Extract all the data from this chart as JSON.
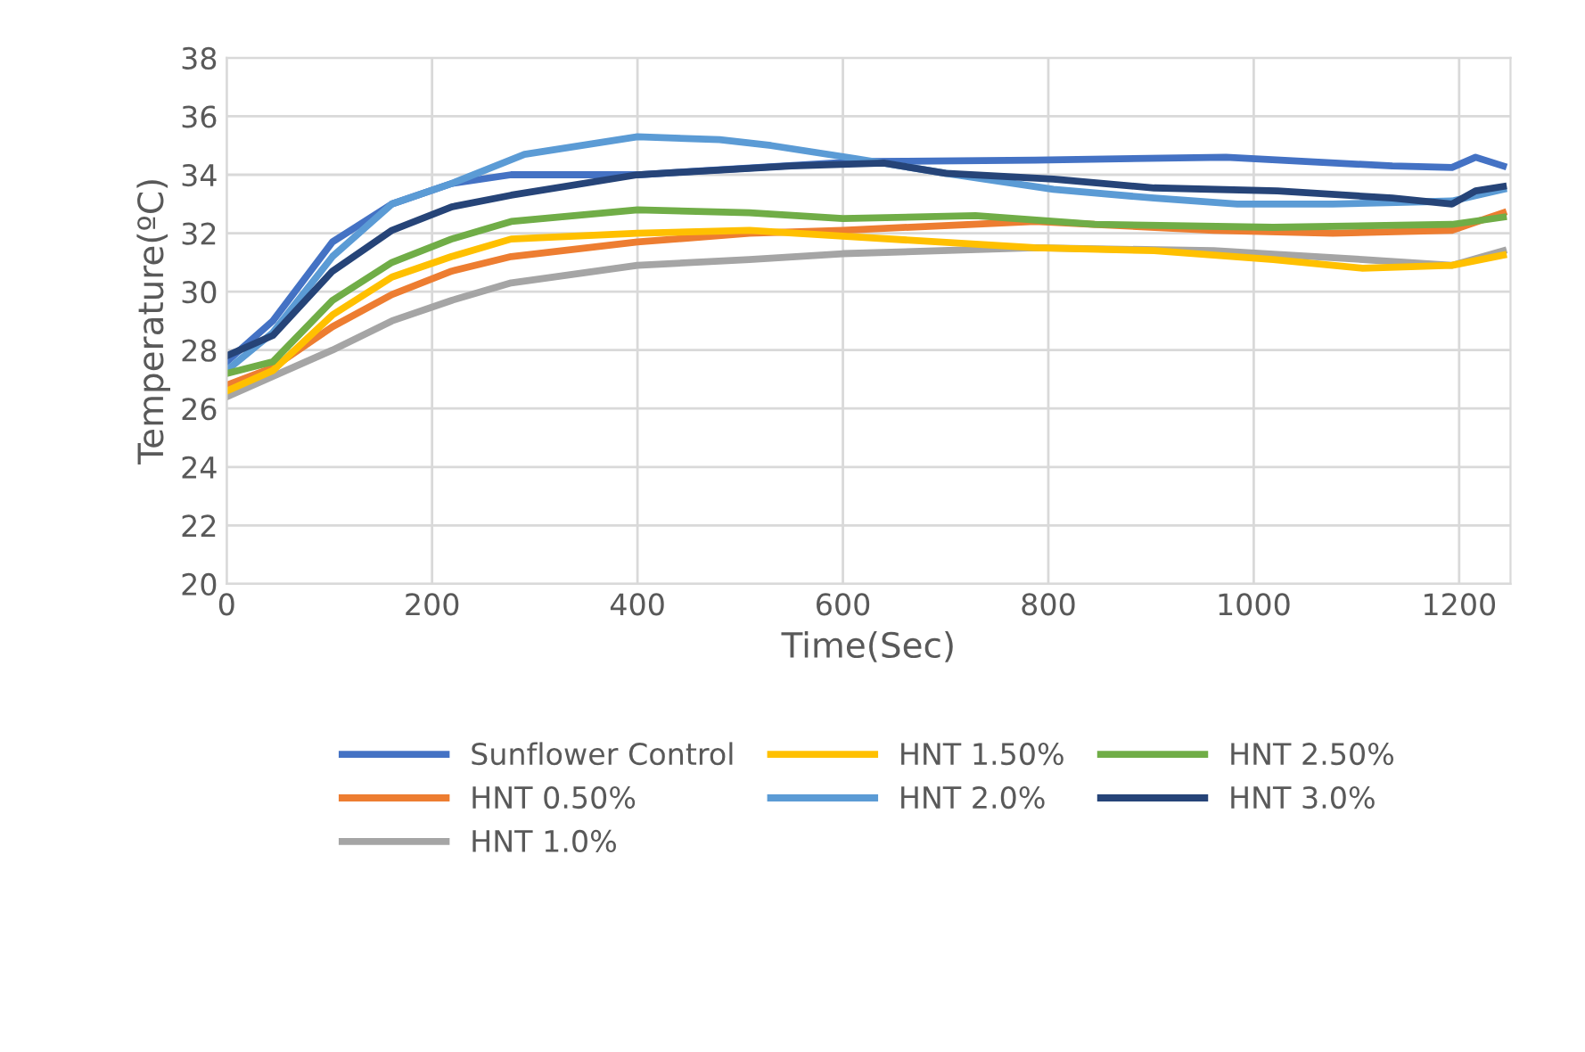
{
  "chart_data": {
    "type": "line",
    "xlabel": "Time(Sec)",
    "ylabel": "Temperature(ºC)",
    "xlim": [
      0,
      1250
    ],
    "xticks": [
      0,
      200,
      400,
      600,
      800,
      1000,
      1200
    ],
    "ylim": [
      20,
      38
    ],
    "yticks": [
      20,
      22,
      24,
      26,
      28,
      30,
      32,
      34,
      36,
      38
    ],
    "grid": true,
    "legend": "bottom",
    "marker": "none",
    "line_style": "solid",
    "series": [
      {
        "name": "Sunflower Control",
        "color": "#4472c4",
        "x": [
          0,
          45,
          103,
          161,
          219,
          277,
          400,
          613,
          787,
          973,
          1135,
          1193,
          1216,
          1243
        ],
        "values": [
          27.6,
          29.0,
          31.7,
          33.0,
          33.7,
          34.0,
          34.0,
          34.45,
          34.5,
          34.6,
          34.3,
          34.25,
          34.6,
          34.3
        ]
      },
      {
        "name": "HNT 0.50%",
        "color": "#ed7d31",
        "x": [
          0,
          45,
          103,
          161,
          219,
          277,
          400,
          509,
          600,
          787,
          961,
          1077,
          1193,
          1243
        ],
        "values": [
          26.8,
          27.4,
          28.8,
          29.9,
          30.7,
          31.2,
          31.7,
          32.0,
          32.1,
          32.4,
          32.1,
          32.0,
          32.1,
          32.7
        ]
      },
      {
        "name": "HNT 1.0%",
        "color": "#a5a5a5",
        "x": [
          0,
          45,
          103,
          161,
          219,
          277,
          400,
          509,
          600,
          787,
          961,
          1106,
          1193,
          1243
        ],
        "values": [
          26.4,
          27.1,
          28.0,
          29.0,
          29.7,
          30.3,
          30.9,
          31.1,
          31.3,
          31.5,
          31.4,
          31.1,
          30.9,
          31.4
        ]
      },
      {
        "name": "HNT 1.50%",
        "color": "#ffc000",
        "x": [
          0,
          45,
          103,
          161,
          219,
          277,
          400,
          509,
          600,
          787,
          903,
          1019,
          1106,
          1193,
          1243
        ],
        "values": [
          26.6,
          27.3,
          29.2,
          30.5,
          31.2,
          31.8,
          32.0,
          32.1,
          31.9,
          31.5,
          31.4,
          31.1,
          30.8,
          30.9,
          31.25
        ]
      },
      {
        "name": "HNT 2.0%",
        "color": "#5b9bd5",
        "x": [
          0,
          45,
          103,
          161,
          219,
          290,
          400,
          480,
          530,
          613,
          700,
          805,
          903,
          984,
          1077,
          1193,
          1243
        ],
        "values": [
          27.3,
          28.6,
          31.2,
          33.0,
          33.7,
          34.7,
          35.3,
          35.2,
          35.0,
          34.55,
          34.05,
          33.5,
          33.2,
          33.0,
          33.0,
          33.1,
          33.5
        ]
      },
      {
        "name": "HNT 2.50%",
        "color": "#70ad47",
        "x": [
          0,
          45,
          103,
          161,
          219,
          277,
          400,
          509,
          600,
          729,
          845,
          1019,
          1193,
          1243
        ],
        "values": [
          27.2,
          27.6,
          29.7,
          31.0,
          31.8,
          32.4,
          32.8,
          32.7,
          32.5,
          32.6,
          32.3,
          32.2,
          32.3,
          32.55
        ]
      },
      {
        "name": "HNT 3.0%",
        "color": "#264478",
        "x": [
          0,
          45,
          103,
          161,
          219,
          277,
          400,
          550,
          640,
          700,
          805,
          903,
          1023,
          1135,
          1193,
          1216,
          1243
        ],
        "values": [
          27.8,
          28.5,
          30.7,
          32.1,
          32.9,
          33.3,
          34.0,
          34.3,
          34.4,
          34.05,
          33.85,
          33.55,
          33.45,
          33.2,
          33.0,
          33.45,
          33.6
        ]
      }
    ]
  }
}
